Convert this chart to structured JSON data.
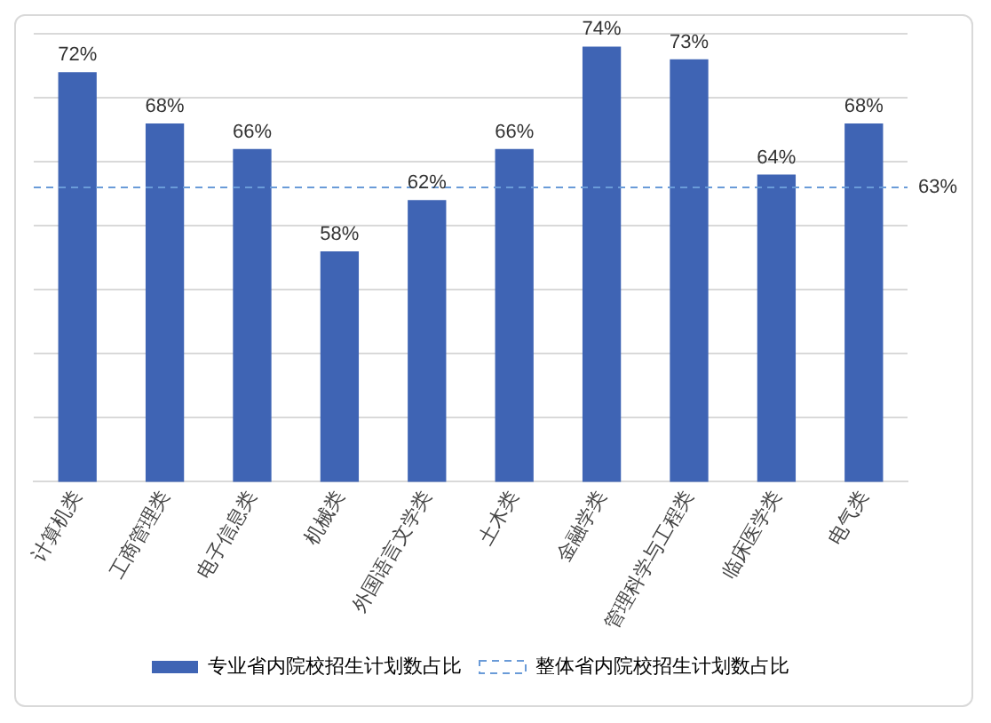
{
  "chart_data": {
    "type": "bar",
    "categories": [
      "计算机类",
      "工商管理类",
      "电子信息类",
      "机械类",
      "外国语言文学类",
      "土木类",
      "金融学类",
      "管理科学与工程类",
      "临床医学类",
      "电气类"
    ],
    "series": [
      {
        "name": "专业省内院校招生计划数占比",
        "color": "#3f64b4",
        "values": [
          72,
          68,
          66,
          58,
          62,
          66,
          74,
          73,
          64,
          68
        ],
        "value_labels": [
          "72%",
          "68%",
          "66%",
          "58%",
          "62%",
          "66%",
          "74%",
          "73%",
          "64%",
          "68%"
        ]
      }
    ],
    "ylim": [
      40,
      75
    ],
    "yticks": [
      {
        "value": 40,
        "label": null
      },
      {
        "value": 45,
        "label": null
      },
      {
        "value": 50,
        "label": null
      },
      {
        "value": 55,
        "label": null
      },
      {
        "value": 60,
        "label": null
      },
      {
        "value": 65,
        "label": null
      },
      {
        "value": 70,
        "label": null
      },
      {
        "value": 75,
        "label": null
      }
    ],
    "tick_labels": "x",
    "grid": "y",
    "legend": "bottom",
    "ref_lines": [
      {
        "axis": "y",
        "value": 63,
        "label": "整体省内院校招生计划数占比",
        "color": "#6a9bd8",
        "line_style": "dashed"
      }
    ],
    "annotations": [
      "63%"
    ]
  }
}
